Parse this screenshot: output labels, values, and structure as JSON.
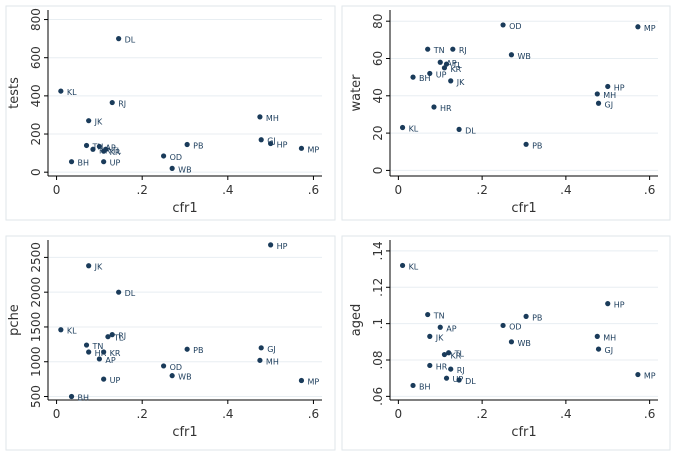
{
  "chart_data": [
    {
      "type": "scatter",
      "title": "",
      "xlabel": "cfr1",
      "ylabel": "tests",
      "xlim": [
        -0.02,
        0.62
      ],
      "ylim": [
        -20,
        850
      ],
      "xticks": [
        0,
        0.2,
        0.4,
        0.6
      ],
      "xtick_labels": [
        "0",
        ".2",
        ".4",
        ".6"
      ],
      "yticks": [
        0,
        200,
        400,
        600,
        800
      ],
      "ytick_labels": [
        "0",
        "200",
        "400",
        "600",
        "800"
      ],
      "grid": "horizontal",
      "points": [
        {
          "label": "DL",
          "x": 0.145,
          "y": 700
        },
        {
          "label": "KL",
          "x": 0.01,
          "y": 425
        },
        {
          "label": "RJ",
          "x": 0.13,
          "y": 365
        },
        {
          "label": "JK",
          "x": 0.075,
          "y": 270
        },
        {
          "label": "MH",
          "x": 0.475,
          "y": 290
        },
        {
          "label": "GJ",
          "x": 0.478,
          "y": 170
        },
        {
          "label": "HP",
          "x": 0.5,
          "y": 150
        },
        {
          "label": "MP",
          "x": 0.572,
          "y": 125
        },
        {
          "label": "PB",
          "x": 0.305,
          "y": 145
        },
        {
          "label": "TN",
          "x": 0.07,
          "y": 140
        },
        {
          "label": "AP",
          "x": 0.1,
          "y": 135
        },
        {
          "label": "TL",
          "x": 0.115,
          "y": 120
        },
        {
          "label": "HR",
          "x": 0.085,
          "y": 120
        },
        {
          "label": "KR",
          "x": 0.11,
          "y": 110
        },
        {
          "label": "OD",
          "x": 0.25,
          "y": 85
        },
        {
          "label": "BH",
          "x": 0.035,
          "y": 55
        },
        {
          "label": "UP",
          "x": 0.11,
          "y": 55
        },
        {
          "label": "WB",
          "x": 0.27,
          "y": 20
        }
      ]
    },
    {
      "type": "scatter",
      "title": "",
      "xlabel": "cfr1",
      "ylabel": "water",
      "xlim": [
        -0.02,
        0.62
      ],
      "ylim": [
        -3,
        86
      ],
      "xticks": [
        0,
        0.2,
        0.4,
        0.6
      ],
      "xtick_labels": [
        "0",
        ".2",
        ".4",
        ".6"
      ],
      "yticks": [
        0,
        20,
        40,
        60,
        80
      ],
      "ytick_labels": [
        "0",
        "20",
        "40",
        "60",
        "80"
      ],
      "grid": "horizontal",
      "points": [
        {
          "label": "OD",
          "x": 0.25,
          "y": 78
        },
        {
          "label": "MP",
          "x": 0.572,
          "y": 77
        },
        {
          "label": "TN",
          "x": 0.07,
          "y": 65
        },
        {
          "label": "RJ",
          "x": 0.13,
          "y": 65
        },
        {
          "label": "WB",
          "x": 0.27,
          "y": 62
        },
        {
          "label": "AP",
          "x": 0.1,
          "y": 58
        },
        {
          "label": "TL",
          "x": 0.115,
          "y": 57
        },
        {
          "label": "KR",
          "x": 0.11,
          "y": 55
        },
        {
          "label": "UP",
          "x": 0.075,
          "y": 52
        },
        {
          "label": "JK",
          "x": 0.125,
          "y": 48
        },
        {
          "label": "BH",
          "x": 0.035,
          "y": 50
        },
        {
          "label": "HP",
          "x": 0.5,
          "y": 45
        },
        {
          "label": "MH",
          "x": 0.475,
          "y": 41
        },
        {
          "label": "GJ",
          "x": 0.478,
          "y": 36
        },
        {
          "label": "HR",
          "x": 0.085,
          "y": 34
        },
        {
          "label": "KL",
          "x": 0.01,
          "y": 23
        },
        {
          "label": "DL",
          "x": 0.145,
          "y": 22
        },
        {
          "label": "PB",
          "x": 0.305,
          "y": 14
        }
      ]
    },
    {
      "type": "scatter",
      "title": "",
      "xlabel": "cfr1",
      "ylabel": "pche",
      "xlim": [
        -0.02,
        0.62
      ],
      "ylim": [
        450,
        2750
      ],
      "xticks": [
        0,
        0.2,
        0.4,
        0.6
      ],
      "xtick_labels": [
        "0",
        ".2",
        ".4",
        ".6"
      ],
      "yticks": [
        500,
        1000,
        1500,
        2000,
        2500
      ],
      "ytick_labels": [
        "500",
        "1000",
        "1500",
        "2000",
        "2500"
      ],
      "grid": "horizontal",
      "points": [
        {
          "label": "HP",
          "x": 0.5,
          "y": 2680
        },
        {
          "label": "JK",
          "x": 0.075,
          "y": 2380
        },
        {
          "label": "DL",
          "x": 0.145,
          "y": 2000
        },
        {
          "label": "KL",
          "x": 0.01,
          "y": 1460
        },
        {
          "label": "RJ",
          "x": 0.13,
          "y": 1390
        },
        {
          "label": "TL",
          "x": 0.12,
          "y": 1360
        },
        {
          "label": "TN",
          "x": 0.07,
          "y": 1240
        },
        {
          "label": "GJ",
          "x": 0.478,
          "y": 1200
        },
        {
          "label": "PB",
          "x": 0.305,
          "y": 1180
        },
        {
          "label": "HR",
          "x": 0.075,
          "y": 1140
        },
        {
          "label": "KR",
          "x": 0.11,
          "y": 1140
        },
        {
          "label": "AP",
          "x": 0.1,
          "y": 1040
        },
        {
          "label": "MH",
          "x": 0.475,
          "y": 1020
        },
        {
          "label": "OD",
          "x": 0.25,
          "y": 940
        },
        {
          "label": "WB",
          "x": 0.27,
          "y": 800
        },
        {
          "label": "UP",
          "x": 0.11,
          "y": 750
        },
        {
          "label": "MP",
          "x": 0.572,
          "y": 730
        },
        {
          "label": "BH",
          "x": 0.035,
          "y": 500
        }
      ]
    },
    {
      "type": "scatter",
      "title": "",
      "xlabel": "cfr1",
      "ylabel": "aged",
      "xlim": [
        -0.02,
        0.62
      ],
      "ylim": [
        0.058,
        0.146
      ],
      "xticks": [
        0,
        0.2,
        0.4,
        0.6
      ],
      "xtick_labels": [
        "0",
        ".2",
        ".4",
        ".6"
      ],
      "yticks": [
        0.06,
        0.08,
        0.1,
        0.12,
        0.14
      ],
      "ytick_labels": [
        ".06",
        ".08",
        ".1",
        ".12",
        ".14"
      ],
      "grid": "horizontal",
      "points": [
        {
          "label": "KL",
          "x": 0.01,
          "y": 0.132
        },
        {
          "label": "HP",
          "x": 0.5,
          "y": 0.111
        },
        {
          "label": "TN",
          "x": 0.07,
          "y": 0.105
        },
        {
          "label": "PB",
          "x": 0.305,
          "y": 0.104
        },
        {
          "label": "OD",
          "x": 0.25,
          "y": 0.099
        },
        {
          "label": "AP",
          "x": 0.1,
          "y": 0.098
        },
        {
          "label": "JK",
          "x": 0.075,
          "y": 0.093
        },
        {
          "label": "MH",
          "x": 0.475,
          "y": 0.093
        },
        {
          "label": "WB",
          "x": 0.27,
          "y": 0.09
        },
        {
          "label": "GJ",
          "x": 0.478,
          "y": 0.086
        },
        {
          "label": "TL",
          "x": 0.12,
          "y": 0.084
        },
        {
          "label": "KR",
          "x": 0.11,
          "y": 0.083
        },
        {
          "label": "HR",
          "x": 0.075,
          "y": 0.077
        },
        {
          "label": "RJ",
          "x": 0.125,
          "y": 0.075
        },
        {
          "label": "MP",
          "x": 0.572,
          "y": 0.072
        },
        {
          "label": "UP",
          "x": 0.115,
          "y": 0.07
        },
        {
          "label": "DL",
          "x": 0.145,
          "y": 0.069
        },
        {
          "label": "BH",
          "x": 0.035,
          "y": 0.066
        }
      ]
    }
  ],
  "colors": {
    "background": "#ffffff",
    "plot_bg": "#ffffff",
    "panel_border": "#dfe6ea",
    "marker": "#1a3b5a",
    "label": "#1a3b5a",
    "grid": "#e8eef2",
    "axis": "#000000"
  }
}
